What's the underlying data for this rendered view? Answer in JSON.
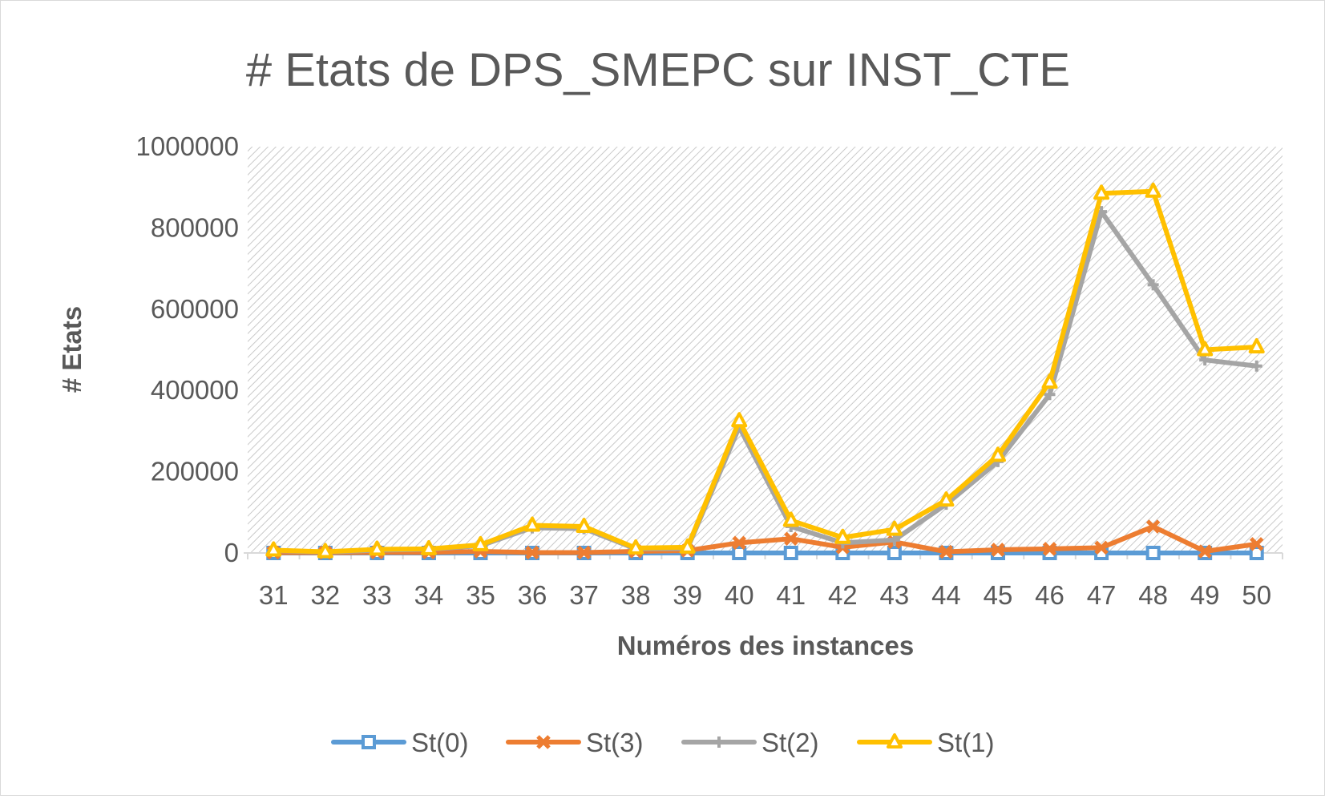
{
  "chart_data": {
    "type": "line",
    "title": "# Etats de DPS_SMEPC sur INST_CTE",
    "xlabel": "Numéros des instances",
    "ylabel": "# Etats",
    "categories": [
      "31",
      "32",
      "33",
      "34",
      "35",
      "36",
      "37",
      "38",
      "39",
      "40",
      "41",
      "42",
      "43",
      "44",
      "45",
      "46",
      "47",
      "48",
      "49",
      "50"
    ],
    "ylim": [
      0,
      1000000
    ],
    "yticks": [
      0,
      200000,
      400000,
      600000,
      800000,
      1000000
    ],
    "ytick_labels": [
      "0",
      "200000",
      "400000",
      "600000",
      "800000",
      "1000000"
    ],
    "grid": false,
    "plot_background": "diagonal hatch",
    "legend_position": "bottom",
    "series": [
      {
        "name": "St(0)",
        "color": "#5B9BD5",
        "marker": "square",
        "values": [
          0,
          0,
          0,
          0,
          0,
          0,
          0,
          0,
          0,
          0,
          0,
          0,
          0,
          0,
          0,
          0,
          0,
          0,
          0,
          0
        ]
      },
      {
        "name": "St(3)",
        "color": "#ED7D31",
        "marker": "x",
        "values": [
          1000,
          800,
          1500,
          1500,
          4000,
          1000,
          1000,
          4000,
          6000,
          25000,
          35000,
          14000,
          27000,
          3000,
          8000,
          10000,
          13000,
          65000,
          4000,
          22000
        ]
      },
      {
        "name": "St(2)",
        "color": "#A5A5A5",
        "marker": "plus",
        "values": [
          6000,
          2000,
          7000,
          9000,
          18000,
          62000,
          60000,
          10000,
          11000,
          310000,
          65000,
          25000,
          32000,
          120000,
          225000,
          390000,
          840000,
          660000,
          475000,
          460000
        ]
      },
      {
        "name": "St(1)",
        "color": "#FFC000",
        "marker": "triangle",
        "values": [
          7000,
          3000,
          9000,
          10000,
          20000,
          68000,
          65000,
          12000,
          14000,
          325000,
          80000,
          38000,
          58000,
          130000,
          240000,
          420000,
          885000,
          890000,
          500000,
          507000
        ]
      }
    ]
  }
}
